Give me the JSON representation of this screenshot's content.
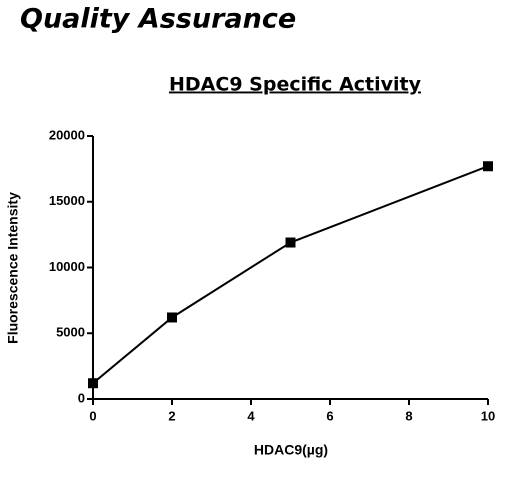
{
  "header": "Quality Assurance",
  "chart_data": {
    "type": "line",
    "title": "HDAC9 Specific Activity",
    "x_label": "HDAC9(µg)",
    "y_label": "Fluorescence Intensity",
    "x": [
      0,
      2,
      5,
      10
    ],
    "series": [
      {
        "color": "#000000",
        "values": [
          1200,
          6200,
          11900,
          17700
        ]
      }
    ],
    "xlim": [
      0,
      10
    ],
    "xticks": [
      0,
      2,
      4,
      6,
      8,
      10
    ],
    "ylim": [
      0,
      20000
    ],
    "yticks": [
      0,
      5000,
      10000,
      15000,
      20000
    ],
    "grid": false,
    "markers": "square"
  }
}
